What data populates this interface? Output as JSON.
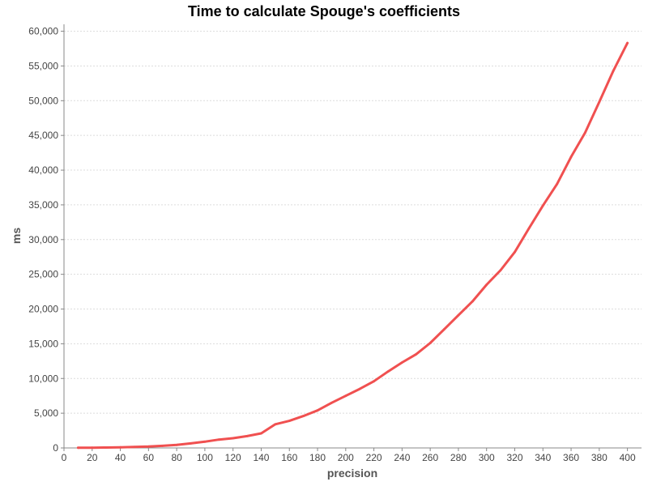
{
  "chart_data": {
    "type": "line",
    "title": "Time to calculate Spouge's coefficients",
    "xlabel": "precision",
    "ylabel": "ms",
    "xlim": [
      0,
      410
    ],
    "ylim": [
      0,
      61000
    ],
    "x_ticks": [
      0,
      20,
      40,
      60,
      80,
      100,
      120,
      140,
      160,
      180,
      200,
      220,
      240,
      260,
      280,
      300,
      320,
      340,
      360,
      380,
      400
    ],
    "y_ticks": [
      0,
      5000,
      10000,
      15000,
      20000,
      25000,
      30000,
      35000,
      40000,
      45000,
      50000,
      55000,
      60000
    ],
    "y_tick_labels": [
      "0",
      "5,000",
      "10,000",
      "15,000",
      "20,000",
      "25,000",
      "30,000",
      "35,000",
      "40,000",
      "45,000",
      "50,000",
      "55,000",
      "60,000"
    ],
    "grid": true,
    "series": [
      {
        "color": "#f05050",
        "points": [
          [
            10,
            20
          ],
          [
            20,
            40
          ],
          [
            30,
            60
          ],
          [
            40,
            90
          ],
          [
            50,
            140
          ],
          [
            60,
            200
          ],
          [
            70,
            300
          ],
          [
            80,
            430
          ],
          [
            90,
            650
          ],
          [
            100,
            900
          ],
          [
            110,
            1200
          ],
          [
            120,
            1400
          ],
          [
            130,
            1700
          ],
          [
            140,
            2100
          ],
          [
            150,
            3400
          ],
          [
            160,
            3900
          ],
          [
            170,
            4600
          ],
          [
            180,
            5400
          ],
          [
            190,
            6500
          ],
          [
            200,
            7500
          ],
          [
            210,
            8500
          ],
          [
            220,
            9600
          ],
          [
            230,
            11000
          ],
          [
            240,
            12300
          ],
          [
            250,
            13500
          ],
          [
            260,
            15100
          ],
          [
            270,
            17100
          ],
          [
            280,
            19100
          ],
          [
            290,
            21100
          ],
          [
            300,
            23500
          ],
          [
            310,
            25600
          ],
          [
            320,
            28200
          ],
          [
            330,
            31600
          ],
          [
            340,
            34900
          ],
          [
            350,
            38000
          ],
          [
            360,
            41900
          ],
          [
            370,
            45400
          ],
          [
            380,
            49800
          ],
          [
            390,
            54300
          ],
          [
            400,
            58300
          ]
        ]
      }
    ]
  }
}
